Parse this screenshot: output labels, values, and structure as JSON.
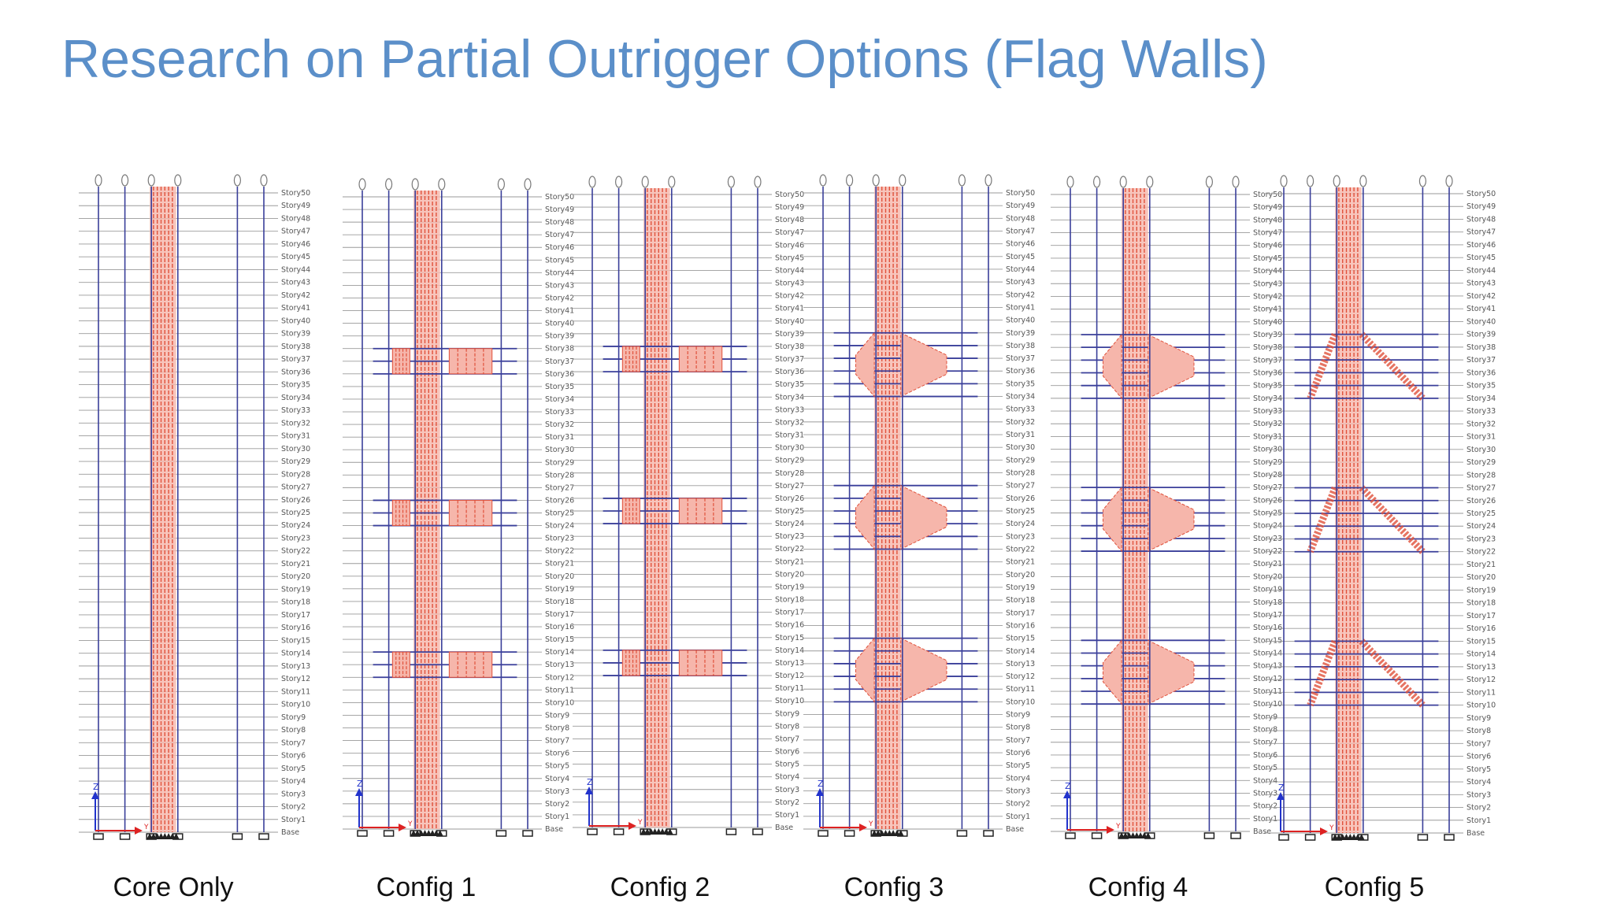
{
  "title": "Research on Partial Outrigger Options (Flag Walls)",
  "story_labels": [
    "Base",
    "Story1",
    "Story2",
    "Story3",
    "Story4",
    "Story5",
    "Story6",
    "Story7",
    "Story8",
    "Story9",
    "Story10",
    "Story11",
    "Story12",
    "Story13",
    "Story14",
    "Story15",
    "Story16",
    "Story17",
    "Story18",
    "Story19",
    "Story20",
    "Story21",
    "Story22",
    "Story23",
    "Story24",
    "Story25",
    "Story26",
    "Story27",
    "Story28",
    "Story29",
    "Story30",
    "Story31",
    "Story32",
    "Story33",
    "Story34",
    "Story35",
    "Story36",
    "Story37",
    "Story38",
    "Story39",
    "Story40",
    "Story41",
    "Story42",
    "Story43",
    "Story44",
    "Story45",
    "Story46",
    "Story47",
    "Story48",
    "Story49",
    "Story50"
  ],
  "axis_labels": {
    "z": "Z",
    "y": "Y"
  },
  "colors": {
    "title": "#5b8fc9",
    "gridline": "#3a3f9a",
    "story_line": "#9a9a9a",
    "core_wall": "#e0523c",
    "outrigger": "#e0523c",
    "z_axis": "#2233cc",
    "y_axis": "#dd2222"
  },
  "configs": [
    {
      "caption": "Core Only",
      "outrigger_style": "none",
      "outrigger_levels": []
    },
    {
      "caption": "Config 1",
      "outrigger_style": "block",
      "outrigger_levels": [
        [
          12,
          14
        ],
        [
          24,
          26
        ],
        [
          36,
          38
        ]
      ]
    },
    {
      "caption": "Config 2",
      "outrigger_style": "block",
      "outrigger_levels": [
        [
          12,
          14
        ],
        [
          24,
          26
        ],
        [
          36,
          38
        ]
      ]
    },
    {
      "caption": "Config 3",
      "outrigger_style": "taper",
      "outrigger_levels": [
        [
          10,
          15
        ],
        [
          22,
          27
        ],
        [
          34,
          39
        ]
      ]
    },
    {
      "caption": "Config 4",
      "outrigger_style": "taper",
      "outrigger_levels": [
        [
          10,
          15
        ],
        [
          22,
          27
        ],
        [
          34,
          39
        ]
      ]
    },
    {
      "caption": "Config 5",
      "outrigger_style": "flag",
      "outrigger_levels": [
        [
          10,
          15
        ],
        [
          22,
          27
        ],
        [
          34,
          39
        ]
      ]
    }
  ]
}
